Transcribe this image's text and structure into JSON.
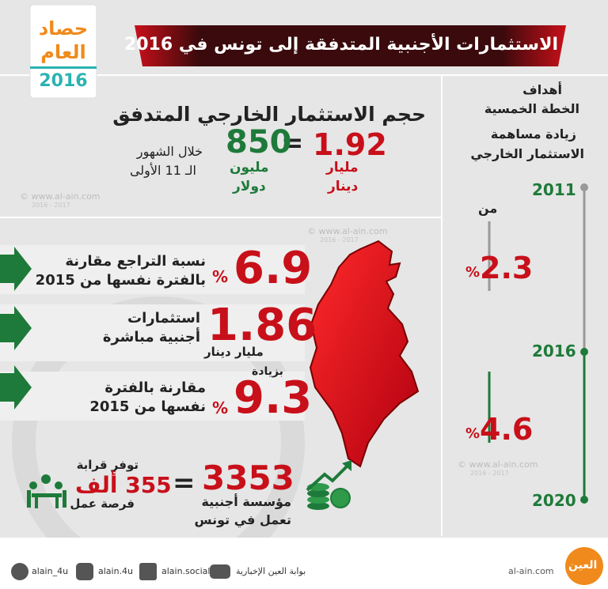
{
  "badge": {
    "line1": "حصاد",
    "line2": "العام",
    "year": 2016
  },
  "title": "الاستثمارات الأجنبية المتدفقة إلى تونس في 2016",
  "inflow": {
    "heading": "حجم الاستثمار الخارجي المتدفق",
    "dinar_value": 1.92,
    "dinar_unit_1": "مليار",
    "dinar_unit_2": "دينار",
    "equals": "=",
    "usd_value": 850,
    "usd_unit_1": "مليون",
    "usd_unit_2": "دولار",
    "period_1": "خلال الشهور",
    "period_2": "الـ 11 الأولى"
  },
  "watermarks": [
    {
      "site": "© www.al-ain.com",
      "years": "2016 - 2017"
    },
    {
      "site": "© www.al-ain.com",
      "years": "2016 - 2017"
    },
    {
      "site": "© www.al-ain.com",
      "years": "2016 - 2017"
    }
  ],
  "stats": [
    {
      "value": 6.9,
      "unit": "%",
      "text_1": "نسبة التراجع مقارنة",
      "text_2": "بالفترة نفسها من 2015"
    },
    {
      "value": 1.86,
      "unit": "مليار دينار",
      "text_1": "استثمارات",
      "text_2": "أجنبية مباشرة"
    },
    {
      "prefix": "بزيادة",
      "value": 9.3,
      "unit": "%",
      "text_1": "مقارنة بالفترة",
      "text_2": "نفسها من 2015"
    }
  ],
  "companies": {
    "value": 3353,
    "text_1": "مؤسسة أجنبية",
    "text_2": "تعمل في تونس",
    "equals": "="
  },
  "jobs": {
    "prefix": "توفر قرابة",
    "value": "355 ألف",
    "suffix": "فرصة عمل"
  },
  "goals": {
    "heading_1": "أهداف",
    "heading_2": "الخطة الخمسية",
    "heading_3": "زيادة مساهمة",
    "heading_4": "الاستثمار الخارجي",
    "year_start": 2011,
    "from": "من",
    "value_start": 2.3,
    "unit_start": "%",
    "year_mid": 2016,
    "value_end": 4.6,
    "unit_end": "%",
    "year_end": 2020
  },
  "footer": {
    "twitter": "alain_4u",
    "instagram": "alain.4u",
    "facebook": "alain.social",
    "youtube": "بوابة العين الإخبارية",
    "website": "al-ain.com",
    "logo": "العين"
  }
}
